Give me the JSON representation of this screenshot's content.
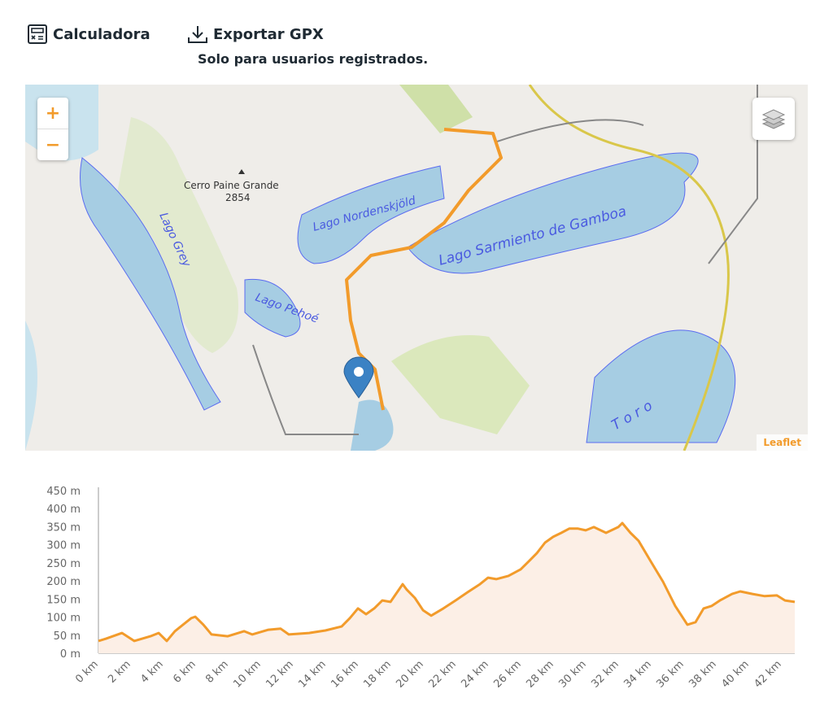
{
  "toolbar": {
    "calculator_label": "Calculadora",
    "export_label": "Exportar GPX",
    "export_note": "Solo para usuarios registrados."
  },
  "map": {
    "zoom_in": "+",
    "zoom_out": "−",
    "attribution": "Leaflet",
    "labels": {
      "peak_name": "Cerro Paine Grande",
      "peak_elevation": "2854",
      "lake_grey": "Lago Grey",
      "lake_nordenskjold": "Lago Nordenskjöld",
      "lake_sarmiento": "Lago Sarmiento de Gamboa",
      "lake_pehoe": "Lago Pehoé",
      "lake_toro": "T o r o"
    },
    "route_color": "#f29b2b",
    "marker_color": "#3b82c4",
    "water_color": "#a6cde3"
  },
  "chart_data": {
    "type": "area",
    "xlabel": "",
    "ylabel": "",
    "xlim": [
      0,
      42.8
    ],
    "ylim": [
      0,
      450
    ],
    "x_ticks": [
      "0 km",
      "2 km",
      "4 km",
      "6 km",
      "8 km",
      "10 km",
      "12 km",
      "14 km",
      "16 km",
      "18 km",
      "20 km",
      "22 km",
      "24 km",
      "26 km",
      "28 km",
      "30 km",
      "32 km",
      "34 km",
      "36 km",
      "38 km",
      "40 km",
      "42 km"
    ],
    "y_ticks": [
      "0 m",
      "50 m",
      "100 m",
      "150 m",
      "200 m",
      "250 m",
      "300 m",
      "350 m",
      "400 m",
      "450 m"
    ],
    "color": "#f29b2b",
    "fill": "#fcefe6",
    "x": [
      0,
      0.45,
      1.45,
      2.2,
      3.2,
      3.7,
      4.2,
      4.7,
      5.7,
      5.95,
      6.45,
      6.95,
      7.95,
      8.95,
      9.45,
      10.45,
      11.2,
      11.7,
      12.95,
      13.95,
      14.95,
      15.45,
      15.95,
      16.45,
      16.95,
      17.45,
      17.95,
      18.7,
      18.95,
      19.45,
      19.95,
      20.45,
      21.2,
      21.95,
      22.7,
      23.45,
      23.95,
      24.45,
      25.2,
      25.95,
      26.45,
      26.95,
      27.45,
      27.95,
      28.45,
      28.95,
      29.45,
      29.95,
      30.45,
      31.2,
      31.95,
      32.2,
      32.7,
      33.2,
      33.95,
      34.7,
      35.45,
      36.2,
      36.7,
      37.2,
      37.7,
      38.2,
      38.95,
      39.45,
      40.2,
      40.95,
      41.7,
      42.2,
      42.8
    ],
    "y": [
      34,
      40,
      56,
      34,
      47,
      56,
      34,
      61,
      97,
      101,
      79,
      52,
      47,
      61,
      52,
      65,
      68,
      52,
      56,
      63,
      74,
      97,
      124,
      108,
      124,
      146,
      142,
      191,
      176,
      153,
      119,
      104,
      124,
      146,
      169,
      191,
      209,
      205,
      214,
      232,
      254,
      277,
      306,
      322,
      333,
      345,
      345,
      340,
      349,
      333,
      349,
      360,
      333,
      311,
      254,
      198,
      131,
      79,
      86,
      124,
      131,
      146,
      164,
      171,
      164,
      158,
      160,
      146,
      142
    ]
  }
}
